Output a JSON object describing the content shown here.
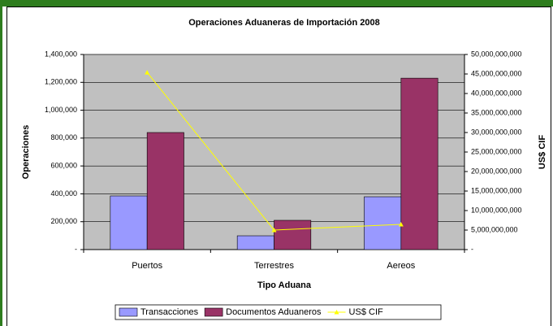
{
  "chart_data": {
    "type": "bar",
    "title": "Operaciones Aduaneras de Importación 2008",
    "x_label": "Tipo Aduana",
    "y_label": "Operaciones",
    "y2_label": "US$ CIF",
    "categories": [
      "Puertos",
      "Terrestres",
      "Aereos"
    ],
    "series": [
      {
        "name": "Transacciones",
        "color": "#9999ff",
        "values": [
          385000,
          99000,
          379000
        ]
      },
      {
        "name": "Documentos Aduaneros",
        "color": "#993366",
        "values": [
          840000,
          210000,
          1230000
        ]
      },
      {
        "name": "US$ CIF",
        "color": "#ffff00",
        "type": "line",
        "axis": "y2",
        "values": [
          45400000000,
          5000000000,
          6460000000
        ]
      }
    ],
    "ylim": [
      0,
      1400000
    ],
    "yticks": [
      {
        "value": 0,
        "label": "-"
      },
      {
        "value": 200000,
        "label": "200,000"
      },
      {
        "value": 400000,
        "label": "400,000"
      },
      {
        "value": 600000,
        "label": "600,000"
      },
      {
        "value": 800000,
        "label": "800,000"
      },
      {
        "value": 1000000,
        "label": "1,000,000"
      },
      {
        "value": 1200000,
        "label": "1,200,000"
      },
      {
        "value": 1400000,
        "label": "1,400,000"
      }
    ],
    "y2lim": [
      0,
      50000000000
    ],
    "y2ticks": [
      {
        "value": 0,
        "label": "-"
      },
      {
        "value": 5000000000,
        "label": "5,000,000,000"
      },
      {
        "value": 10000000000,
        "label": "10,000,000,000"
      },
      {
        "value": 15000000000,
        "label": "15,000,000,000"
      },
      {
        "value": 20000000000,
        "label": "20,000,000,000"
      },
      {
        "value": 25000000000,
        "label": "25,000,000,000"
      },
      {
        "value": 30000000000,
        "label": "30,000,000,000"
      },
      {
        "value": 35000000000,
        "label": "35,000,000,000"
      },
      {
        "value": 40000000000,
        "label": "40,000,000,000"
      },
      {
        "value": 45000000000,
        "label": "45,000,000,000"
      },
      {
        "value": 50000000000,
        "label": "50,000,000,000"
      }
    ],
    "grid": true,
    "plot_background": "#c0c0c0",
    "legend": "bottom"
  }
}
